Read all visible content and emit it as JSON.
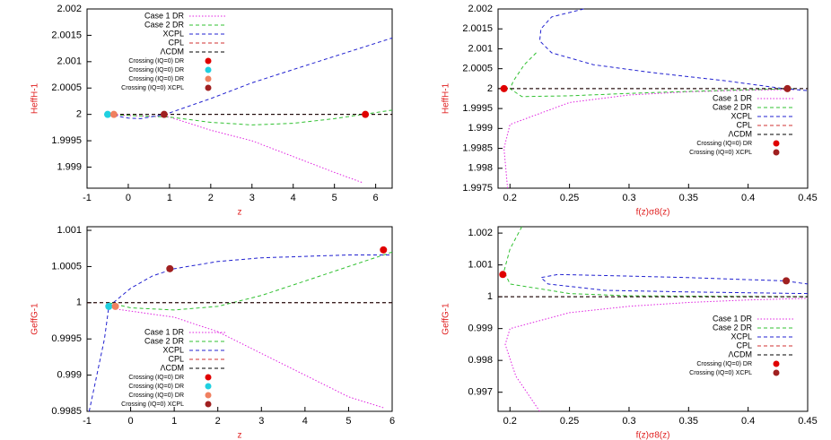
{
  "chart_data": [
    {
      "type": "line",
      "xlabel": "z",
      "ylabel": "HeffH-1",
      "legend": "top-left",
      "xlim": [
        -1,
        6.4
      ],
      "xticks": [
        -1,
        0,
        1,
        2,
        3,
        4,
        5,
        6
      ],
      "ylim": [
        1.9986,
        2.002
      ],
      "yticks": [
        1.999,
        1.9995,
        2,
        2.0005,
        2.001,
        2.0015,
        2.002
      ],
      "series": [
        {
          "name": "Case 1 DR",
          "color": "#e020e0",
          "style": "dotted",
          "x": [
            -0.5,
            0,
            1,
            2,
            3,
            4,
            5,
            5.7
          ],
          "values": [
            2,
            1.99998,
            1.99995,
            1.9997,
            1.9995,
            1.9992,
            1.9989,
            1.9987
          ]
        },
        {
          "name": "Case 2 DR",
          "color": "#30c030",
          "style": "dashed",
          "x": [
            -0.5,
            0,
            1,
            2,
            3,
            4,
            5,
            5.7,
            6.4
          ],
          "values": [
            2,
            1.99998,
            1.99995,
            1.99985,
            1.9998,
            1.99983,
            1.99992,
            2,
            2.00008
          ]
        },
        {
          "name": "XCPL",
          "color": "#2020d0",
          "style": "dashed",
          "x": [
            -0.5,
            0,
            0.3,
            0.9,
            2,
            3,
            4,
            5,
            6.4
          ],
          "values": [
            2,
            1.99993,
            1.99992,
            2,
            2.0003,
            2.0006,
            2.00085,
            2.0011,
            2.00145
          ]
        },
        {
          "name": "CPL",
          "color": "#d03030",
          "style": "dashed",
          "x": [
            -0.5,
            6.4
          ],
          "values": [
            2,
            2
          ]
        },
        {
          "name": "ΛCDM",
          "color": "#000000",
          "style": "dashed",
          "x": [
            -0.5,
            6.4
          ],
          "values": [
            2,
            2
          ]
        }
      ],
      "crossings": [
        {
          "name": "Crossing (IQ=0) DR",
          "color": "#e00000",
          "x": [
            5.75
          ],
          "values": [
            2
          ]
        },
        {
          "name": "Crossing (IQ=0) DR",
          "color": "#20d0e0",
          "x": [
            -0.5
          ],
          "values": [
            2
          ]
        },
        {
          "name": "Crossing (IQ=0) DR",
          "color": "#f08060",
          "x": [
            -0.35
          ],
          "values": [
            2
          ]
        },
        {
          "name": "Crossing (IQ=0) XCPL",
          "color": "#a02020",
          "x": [
            0.87
          ],
          "values": [
            2
          ]
        }
      ]
    },
    {
      "type": "line",
      "xlabel": "f(z)σ8(z)",
      "ylabel": "HeffH-1",
      "legend": "right",
      "xlim": [
        0.19,
        0.45
      ],
      "xticks": [
        0.2,
        0.25,
        0.3,
        0.35,
        0.4,
        0.45
      ],
      "ylim": [
        1.9975,
        2.002
      ],
      "yticks": [
        1.9975,
        1.998,
        1.9985,
        1.999,
        1.9995,
        2,
        2.0005,
        2.001,
        2.0015,
        2.002
      ],
      "series": [
        {
          "name": "Case 1 DR",
          "color": "#e020e0",
          "style": "dotted",
          "x": [
            0.198,
            0.195,
            0.2,
            0.25,
            0.3,
            0.35,
            0.4,
            0.44
          ],
          "values": [
            1.9975,
            1.9985,
            1.9991,
            1.99965,
            1.99984,
            1.99992,
            1.99996,
            1.99998
          ]
        },
        {
          "name": "Case 2 DR",
          "color": "#30c030",
          "style": "dashed",
          "x": [
            0.222,
            0.212,
            0.203,
            0.2,
            0.21,
            0.25,
            0.3,
            0.35,
            0.4,
            0.44
          ],
          "values": [
            2.0009,
            2.0006,
            2.0002,
            2,
            1.9998,
            1.99982,
            1.99988,
            1.99993,
            1.99997,
            2
          ]
        },
        {
          "name": "XCPL",
          "color": "#2020d0",
          "style": "dashed",
          "x": [
            0.262,
            0.235,
            0.226,
            0.225,
            0.235,
            0.27,
            0.32,
            0.38,
            0.43,
            0.45
          ],
          "values": [
            2.002,
            2.0018,
            2.0015,
            2.0012,
            2.0009,
            2.0006,
            2.0004,
            2.0002,
            2,
            1.99995
          ]
        },
        {
          "name": "CPL",
          "color": "#d03030",
          "style": "dashed",
          "x": [
            0.19,
            0.45
          ],
          "values": [
            2,
            2
          ]
        },
        {
          "name": "ΛCDM",
          "color": "#000000",
          "style": "dashed",
          "x": [
            0.19,
            0.45
          ],
          "values": [
            2,
            2
          ]
        }
      ],
      "crossings": [
        {
          "name": "Crossing (IQ=0) DR",
          "color": "#e00000",
          "x": [
            0.195
          ],
          "values": [
            2
          ]
        },
        {
          "name": "Crossing (IQ=0) XCPL",
          "color": "#a02020",
          "x": [
            0.433
          ],
          "values": [
            2
          ]
        }
      ]
    },
    {
      "type": "line",
      "xlabel": "z",
      "ylabel": "GeffG-1",
      "legend": "bottom-left",
      "xlim": [
        -1,
        6
      ],
      "xticks": [
        -1,
        0,
        1,
        2,
        3,
        4,
        5,
        6
      ],
      "ylim": [
        0.9985,
        1.00105
      ],
      "yticks": [
        0.9985,
        0.999,
        0.9995,
        1,
        1.0005,
        1.001
      ],
      "series": [
        {
          "name": "Case 1 DR",
          "color": "#e020e0",
          "style": "dotted",
          "x": [
            -0.5,
            -0.3,
            1,
            2,
            3,
            4,
            5,
            5.8
          ],
          "values": [
            1,
            0.99991,
            0.9998,
            0.9996,
            0.9993,
            0.999,
            0.9987,
            0.99855
          ]
        },
        {
          "name": "Case 2 DR",
          "color": "#30c030",
          "style": "dashed",
          "x": [
            -0.5,
            0,
            1,
            2,
            3,
            4,
            5,
            6
          ],
          "values": [
            1,
            0.99993,
            0.9999,
            0.99995,
            1.0001,
            1.0003,
            1.0005,
            1.0007
          ]
        },
        {
          "name": "XCPL",
          "color": "#2020d0",
          "style": "dashed",
          "x": [
            -0.95,
            -0.6,
            -0.5,
            0,
            0.5,
            1,
            2,
            3,
            4,
            5,
            6
          ],
          "values": [
            0.9985,
            0.9995,
            0.99995,
            1.0002,
            1.00037,
            1.00047,
            1.00057,
            1.00062,
            1.00064,
            1.00066,
            1.00066
          ]
        },
        {
          "name": "CPL",
          "color": "#d03030",
          "style": "dashed",
          "x": [
            -1,
            6
          ],
          "values": [
            1,
            1
          ]
        },
        {
          "name": "ΛCDM",
          "color": "#000000",
          "style": "dashed",
          "x": [
            -1,
            6
          ],
          "values": [
            1,
            1
          ]
        }
      ],
      "crossings": [
        {
          "name": "Crossing (IQ=0) DR",
          "color": "#e00000",
          "x": [
            5.8
          ],
          "values": [
            1.00073
          ]
        },
        {
          "name": "Crossing (IQ=0) DR",
          "color": "#20d0e0",
          "x": [
            -0.5
          ],
          "values": [
            0.99995
          ]
        },
        {
          "name": "Crossing (IQ=0) DR",
          "color": "#f08060",
          "x": [
            -0.35
          ],
          "values": [
            0.99995
          ]
        },
        {
          "name": "Crossing (IQ=0) XCPL",
          "color": "#a02020",
          "x": [
            0.9
          ],
          "values": [
            1.00047
          ]
        }
      ]
    },
    {
      "type": "line",
      "xlabel": "f(z)σ8(z)",
      "ylabel": "GeffG-1",
      "legend": "right",
      "xlim": [
        0.19,
        0.45
      ],
      "xticks": [
        0.2,
        0.25,
        0.3,
        0.35,
        0.4,
        0.45
      ],
      "ylim": [
        0.9964,
        1.0022
      ],
      "yticks": [
        0.997,
        0.998,
        0.999,
        1,
        1.001,
        1.002
      ],
      "series": [
        {
          "name": "Case 1 DR",
          "color": "#e020e0",
          "style": "dotted",
          "x": [
            0.225,
            0.205,
            0.196,
            0.2,
            0.25,
            0.3,
            0.35,
            0.4,
            0.45
          ],
          "values": [
            0.9964,
            0.9975,
            0.9985,
            0.999,
            0.9995,
            0.9997,
            0.99982,
            0.9999,
            0.99995
          ]
        },
        {
          "name": "Case 2 DR",
          "color": "#30c030",
          "style": "dashed",
          "x": [
            0.21,
            0.2,
            0.195,
            0.2,
            0.25,
            0.3,
            0.45
          ],
          "values": [
            1.0022,
            1.0015,
            1.0008,
            1.0004,
            1.0001,
            1.00003,
            1
          ]
        },
        {
          "name": "XCPL",
          "color": "#2020d0",
          "style": "dashed",
          "x": [
            0.45,
            0.35,
            0.28,
            0.232,
            0.226,
            0.24,
            0.3,
            0.35,
            0.43,
            0.45
          ],
          "values": [
            1.0001,
            1.00015,
            1.0002,
            1.0004,
            1.0006,
            1.0007,
            1.00065,
            1.0006,
            1.0005,
            1.0004
          ]
        },
        {
          "name": "CPL",
          "color": "#d03030",
          "style": "dashed",
          "x": [
            0.19,
            0.45
          ],
          "values": [
            1,
            1
          ]
        },
        {
          "name": "ΛCDM",
          "color": "#000000",
          "style": "dashed",
          "x": [
            0.19,
            0.45
          ],
          "values": [
            1,
            1
          ]
        }
      ],
      "crossings": [
        {
          "name": "Crossing (IQ=0) DR",
          "color": "#e00000",
          "x": [
            0.194
          ],
          "values": [
            1.0007
          ]
        },
        {
          "name": "Crossing (IQ=0) XCPL",
          "color": "#a02020",
          "x": [
            0.432
          ],
          "values": [
            1.0005
          ]
        }
      ]
    }
  ]
}
